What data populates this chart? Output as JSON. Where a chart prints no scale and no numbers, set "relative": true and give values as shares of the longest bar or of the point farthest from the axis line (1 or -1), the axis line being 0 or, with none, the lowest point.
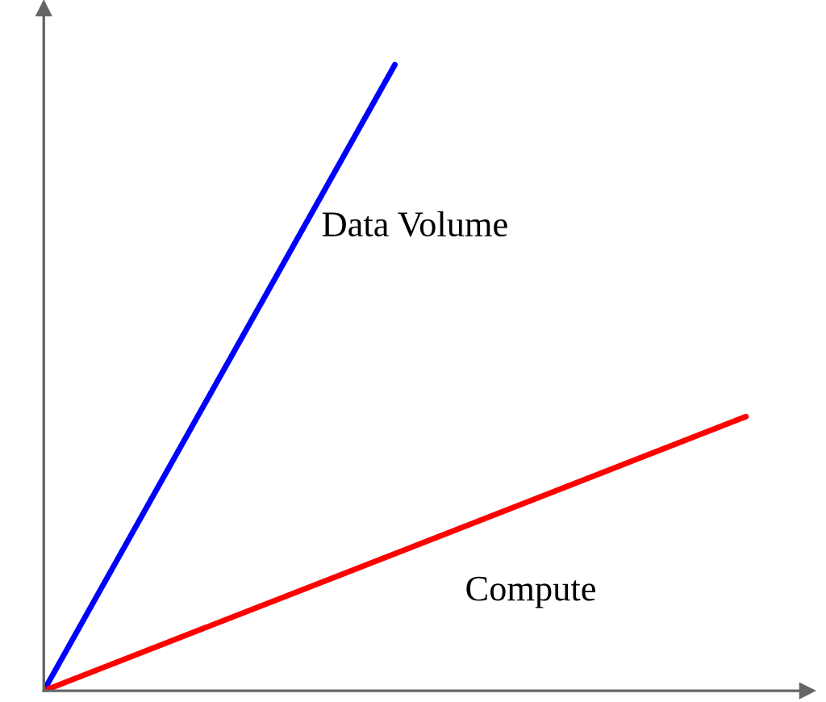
{
  "chart_data": {
    "type": "line",
    "relative": true,
    "legend": false,
    "marker": "none",
    "line_style": "solid",
    "categories": [
      null,
      null,
      null
    ],
    "series": [
      {
        "name": "Data Volume",
        "color": "#0000ff",
        "values": [
          0,
          1,
          null
        ]
      },
      {
        "name": "Compute",
        "color": "#ff0000",
        "values": [
          0,
          0.219,
          0.438
        ]
      }
    ]
  }
}
